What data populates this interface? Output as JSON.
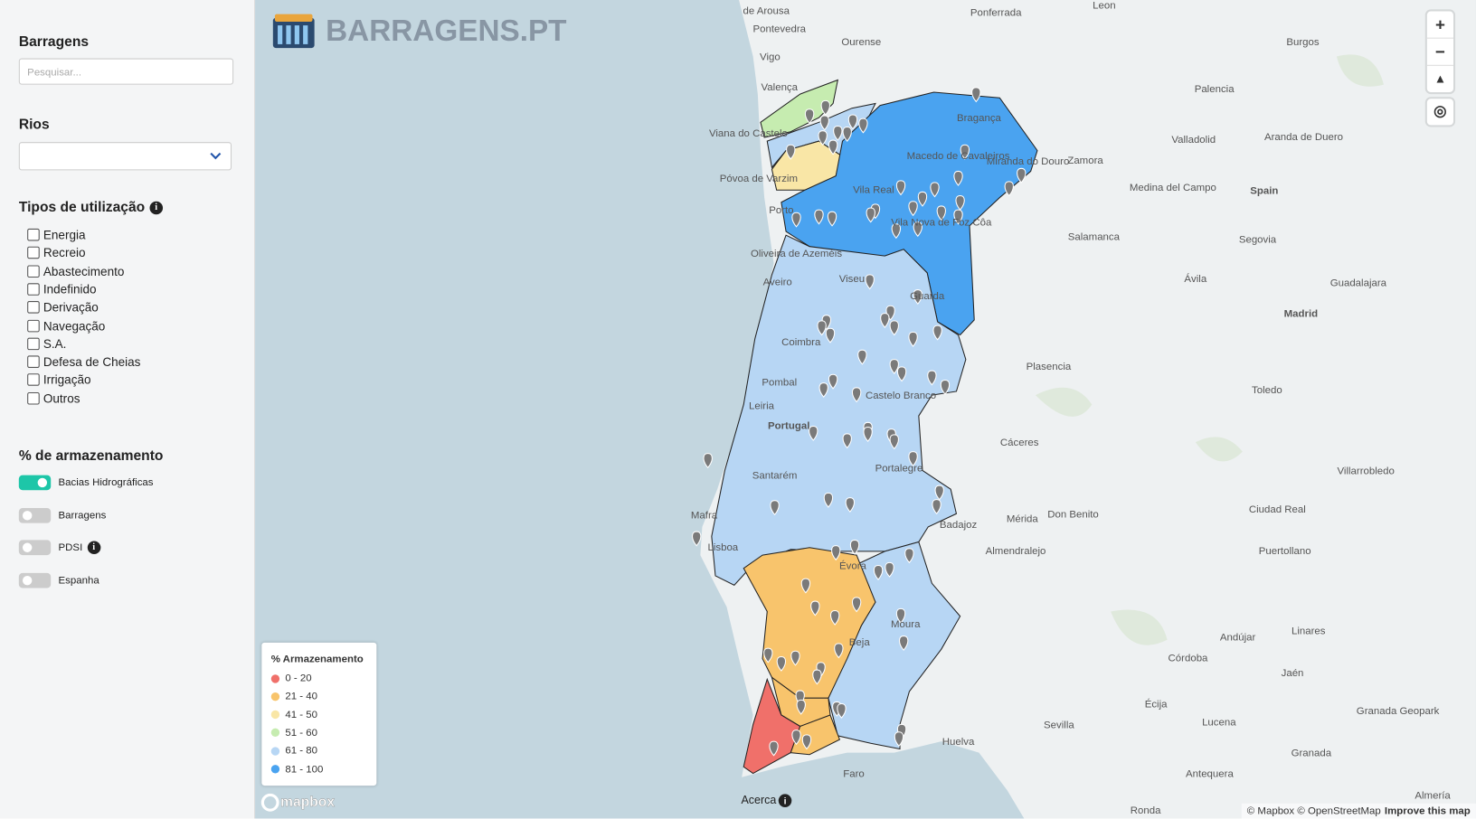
{
  "sidebar": {
    "dams_heading": "Barragens",
    "search_placeholder": "Pesquisar...",
    "rivers_heading": "Rios",
    "usage_heading": "Tipos de utilização",
    "usage_types": [
      "Energia",
      "Recreio",
      "Abastecimento",
      "Indefinido",
      "Derivação",
      "Navegação",
      "S.A.",
      "Defesa de Cheias",
      "Irrigação",
      "Outros"
    ],
    "storage_heading": "% de armazenamento",
    "toggles": [
      {
        "label": "Bacias Hidrográficas",
        "on": true
      },
      {
        "label": "Barragens",
        "on": false
      },
      {
        "label": "PDSI",
        "on": false
      },
      {
        "label": "Espanha",
        "on": false
      }
    ]
  },
  "app_title": "BARRAGENS.PT",
  "legend": {
    "title": "% Armazenamento",
    "items": [
      {
        "label": "0 - 20",
        "color": "#f0706a"
      },
      {
        "label": "21 - 40",
        "color": "#f8c46c"
      },
      {
        "label": "41 - 50",
        "color": "#f9e6a6"
      },
      {
        "label": "51 - 60",
        "color": "#c6ecb0"
      },
      {
        "label": "61 - 80",
        "color": "#b7d6f4"
      },
      {
        "label": "81 - 100",
        "color": "#4aa3f0"
      }
    ]
  },
  "basins": [
    {
      "legend_item": 3
    },
    {
      "legend_item": 4
    },
    {
      "legend_item": 2
    },
    {
      "legend_item": 5
    },
    {
      "legend_item": 4
    },
    {
      "legend_item": 4
    },
    {
      "legend_item": 1
    },
    {
      "legend_item": 1
    },
    {
      "legend_item": 0
    },
    {
      "legend_item": 1
    }
  ],
  "map_labels": [
    "de Arousa",
    "Ponferrada",
    "Leon",
    "Pontevedra",
    "Ourense",
    "Burgos",
    "Vigo",
    "Valença",
    "Palencia",
    "Bragança",
    "Viana do Castelo",
    "Aranda de Duero",
    "Valladolid",
    "Macedo de Cavaleiros",
    "Miranda do Douro",
    "Zamora",
    "Póvoa de Varzim",
    "Medina del Campo",
    "Spain",
    "Vila Real",
    "Porto",
    "Vila Nova de Foz Côa",
    "Salamanca",
    "Segovia",
    "Oliveira de Azeméis",
    "Aveiro",
    "Ávila",
    "Guadalajara",
    "Viseu",
    "Madrid",
    "Guarda",
    "Coimbra",
    "Plasencia",
    "Castelo Branco",
    "Pombal",
    "Toledo",
    "Leiria",
    "Portugal",
    "Cáceres",
    "Villarrobledo",
    "Santarém",
    "Portalegre",
    "Mérida",
    "Don Benito",
    "Ciudad Real",
    "Badajoz",
    "Mafra",
    "Lisboa",
    "Almendralejo",
    "Puertollano",
    "Évora",
    "Linares",
    "Andújar",
    "Moura",
    "Beja",
    "Córdoba",
    "Jaén",
    "Écija",
    "Lucena",
    "Granada Geopark",
    "Sevilla",
    "Huelva",
    "Granada",
    "Faro",
    "Antequera",
    "Ronda",
    "Almería"
  ],
  "about": "Acerca",
  "mapbox_logo": "mapbox",
  "attribution": "© Mapbox © OpenStreetMap",
  "improve_link": "Improve this map"
}
